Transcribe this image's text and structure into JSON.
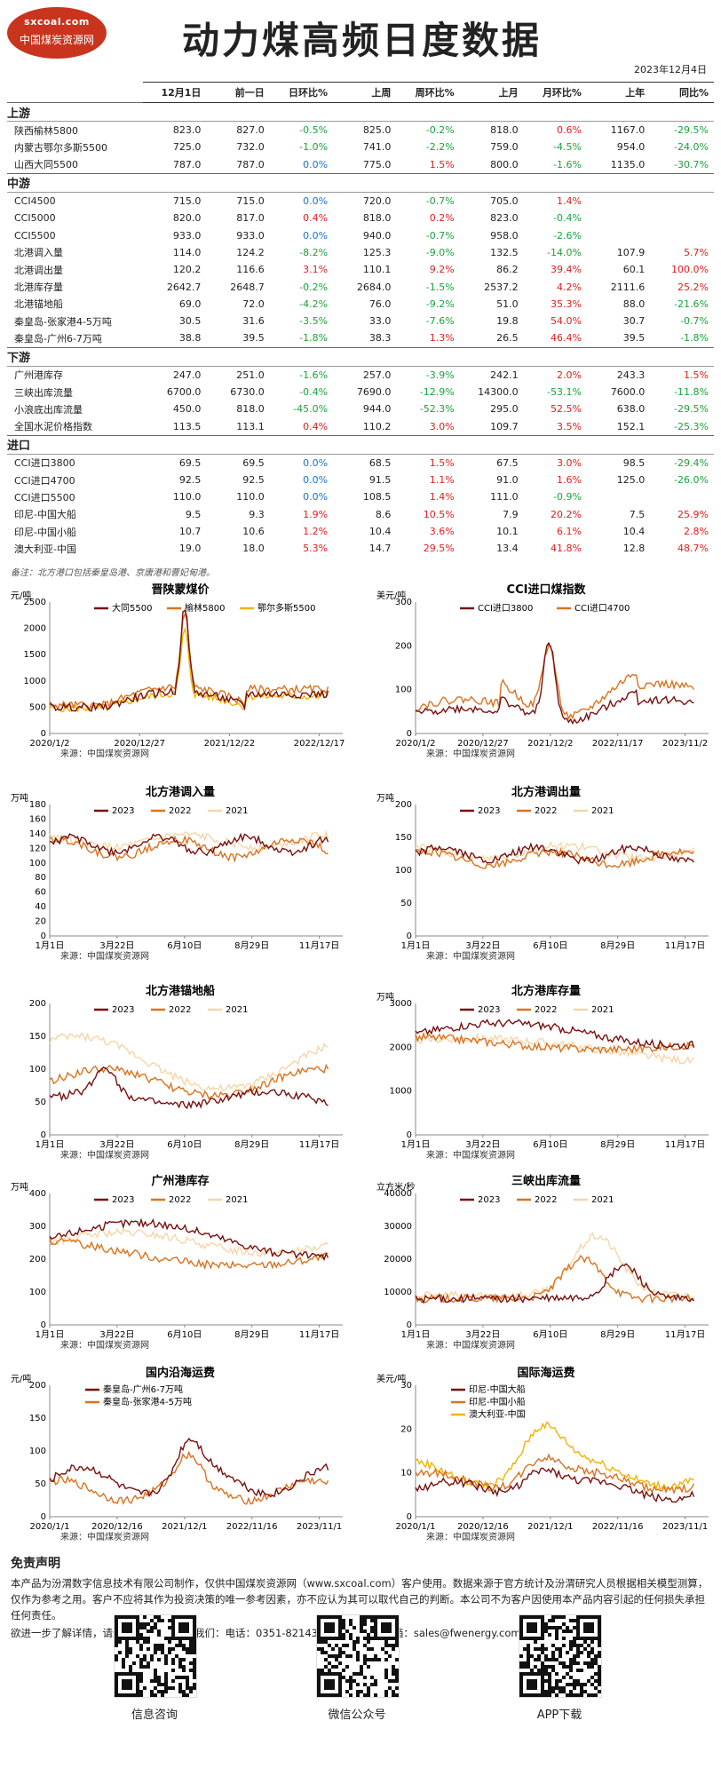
{
  "header": {
    "logo_site": "sxcoal.com",
    "logo_name": "中国煤炭资源网",
    "title": "动力煤高频日度数据",
    "date": "2023年12月4日"
  },
  "table": {
    "columns": [
      "",
      "12月1日",
      "前一日",
      "日环比%",
      "上周",
      "周环比%",
      "上月",
      "月环比%",
      "上年",
      "同比%"
    ],
    "sections": [
      {
        "name": "上游",
        "rows": [
          [
            "陕西榆林5800",
            "823.0",
            "827.0",
            "-0.5%",
            "825.0",
            "-0.2%",
            "818.0",
            "0.6%",
            "1167.0",
            "-29.5%"
          ],
          [
            "内蒙古鄂尔多斯5500",
            "725.0",
            "732.0",
            "-1.0%",
            "741.0",
            "-2.2%",
            "759.0",
            "-4.5%",
            "954.0",
            "-24.0%"
          ],
          [
            "山西大同5500",
            "787.0",
            "787.0",
            "0.0%",
            "775.0",
            "1.5%",
            "800.0",
            "-1.6%",
            "1135.0",
            "-30.7%"
          ]
        ]
      },
      {
        "name": "中游",
        "rows": [
          [
            "CCI4500",
            "715.0",
            "715.0",
            "0.0%",
            "720.0",
            "-0.7%",
            "705.0",
            "1.4%",
            "",
            ""
          ],
          [
            "CCI5000",
            "820.0",
            "817.0",
            "0.4%",
            "818.0",
            "0.2%",
            "823.0",
            "-0.4%",
            "",
            ""
          ],
          [
            "CCI5500",
            "933.0",
            "933.0",
            "0.0%",
            "940.0",
            "-0.7%",
            "958.0",
            "-2.6%",
            "",
            ""
          ],
          [
            "北港调入量",
            "114.0",
            "124.2",
            "-8.2%",
            "125.3",
            "-9.0%",
            "132.5",
            "-14.0%",
            "107.9",
            "5.7%"
          ],
          [
            "北港调出量",
            "120.2",
            "116.6",
            "3.1%",
            "110.1",
            "9.2%",
            "86.2",
            "39.4%",
            "60.1",
            "100.0%"
          ],
          [
            "北港库存量",
            "2642.7",
            "2648.7",
            "-0.2%",
            "2684.0",
            "-1.5%",
            "2537.2",
            "4.2%",
            "2111.6",
            "25.2%"
          ],
          [
            "北港锚地船",
            "69.0",
            "72.0",
            "-4.2%",
            "76.0",
            "-9.2%",
            "51.0",
            "35.3%",
            "88.0",
            "-21.6%"
          ],
          [
            "秦皇岛-张家港4-5万吨",
            "30.5",
            "31.6",
            "-3.5%",
            "33.0",
            "-7.6%",
            "19.8",
            "54.0%",
            "30.7",
            "-0.7%"
          ],
          [
            "秦皇岛-广州6-7万吨",
            "38.8",
            "39.5",
            "-1.8%",
            "38.3",
            "1.3%",
            "26.5",
            "46.4%",
            "39.5",
            "-1.8%"
          ]
        ]
      },
      {
        "name": "下游",
        "rows": [
          [
            "广州港库存",
            "247.0",
            "251.0",
            "-1.6%",
            "257.0",
            "-3.9%",
            "242.1",
            "2.0%",
            "243.3",
            "1.5%"
          ],
          [
            "三峡出库流量",
            "6700.0",
            "6730.0",
            "-0.4%",
            "7690.0",
            "-12.9%",
            "14300.0",
            "-53.1%",
            "7600.0",
            "-11.8%"
          ],
          [
            "小浪底出库流量",
            "450.0",
            "818.0",
            "-45.0%",
            "944.0",
            "-52.3%",
            "295.0",
            "52.5%",
            "638.0",
            "-29.5%"
          ],
          [
            "全国水泥价格指数",
            "113.5",
            "113.1",
            "0.4%",
            "110.2",
            "3.0%",
            "109.7",
            "3.5%",
            "152.1",
            "-25.3%"
          ]
        ]
      },
      {
        "name": "进口",
        "rows": [
          [
            "CCI进口3800",
            "69.5",
            "69.5",
            "0.0%",
            "68.5",
            "1.5%",
            "67.5",
            "3.0%",
            "98.5",
            "-29.4%"
          ],
          [
            "CCI进口4700",
            "92.5",
            "92.5",
            "0.0%",
            "91.5",
            "1.1%",
            "91.0",
            "1.6%",
            "125.0",
            "-26.0%"
          ],
          [
            "CCI进口5500",
            "110.0",
            "110.0",
            "0.0%",
            "108.5",
            "1.4%",
            "111.0",
            "-0.9%",
            "",
            ""
          ],
          [
            "印尼-中国大船",
            "9.5",
            "9.3",
            "1.9%",
            "8.6",
            "10.5%",
            "7.9",
            "20.2%",
            "7.5",
            "25.9%"
          ],
          [
            "印尼-中国小船",
            "10.7",
            "10.6",
            "1.2%",
            "10.4",
            "3.6%",
            "10.1",
            "6.1%",
            "10.4",
            "2.8%"
          ],
          [
            "澳大利亚-中国",
            "19.0",
            "18.0",
            "5.3%",
            "14.7",
            "29.5%",
            "13.4",
            "41.8%",
            "12.8",
            "48.7%"
          ]
        ]
      }
    ]
  },
  "note": "备注：北方港口包括秦皇岛港、京唐港和曹妃甸港。",
  "source_label": "来源：中国煤炭资源网",
  "chart_data": [
    {
      "id": "c1",
      "type": "line",
      "title": "晋陕蒙煤价",
      "unit": "元/吨",
      "ylim": [
        0,
        2500
      ],
      "yticks": [
        0,
        500,
        1000,
        1500,
        2000,
        2500
      ],
      "xticks": [
        "2020/1/2",
        "2020/12/27",
        "2021/12/22",
        "2022/12/17"
      ],
      "series": [
        {
          "name": "大同5500",
          "color": "#7a1010"
        },
        {
          "name": "榆林5800",
          "color": "#d9731f"
        },
        {
          "name": "鄂尔多斯5500",
          "color": "#f0b400"
        }
      ]
    },
    {
      "id": "c2",
      "type": "line",
      "title": "CCI进口煤指数",
      "unit": "美元/吨",
      "ylim": [
        0,
        300
      ],
      "yticks": [
        0,
        100,
        200,
        300
      ],
      "xticks": [
        "2020/1/2",
        "2020/12/27",
        "2021/12/2",
        "2022/11/17",
        "2023/11/2"
      ],
      "series": [
        {
          "name": "CCI进口3800",
          "color": "#7a1010"
        },
        {
          "name": "CCI进口4700",
          "color": "#d9731f"
        }
      ]
    },
    {
      "id": "c3",
      "type": "line",
      "title": "北方港调入量",
      "unit": "万吨",
      "ylim": [
        0,
        180
      ],
      "yticks": [
        0,
        20,
        40,
        60,
        80,
        100,
        120,
        140,
        160,
        180
      ],
      "xticks": [
        "1月1日",
        "3月22日",
        "6月10日",
        "8月29日",
        "11月17日"
      ],
      "series": [
        {
          "name": "2023",
          "color": "#7a1010"
        },
        {
          "name": "2022",
          "color": "#d9731f"
        },
        {
          "name": "2021",
          "color": "#f5d6a8"
        }
      ]
    },
    {
      "id": "c4",
      "type": "line",
      "title": "北方港调出量",
      "unit": "万吨",
      "ylim": [
        0,
        200
      ],
      "yticks": [
        0,
        50,
        100,
        150,
        200
      ],
      "xticks": [
        "1月1日",
        "3月22日",
        "6月10日",
        "8月29日",
        "11月17日"
      ],
      "series": [
        {
          "name": "2023",
          "color": "#7a1010"
        },
        {
          "name": "2022",
          "color": "#d9731f"
        },
        {
          "name": "2021",
          "color": "#f5d6a8"
        }
      ]
    },
    {
      "id": "c5",
      "type": "line",
      "title": "北方港锚地船",
      "unit": "",
      "ylim": [
        0,
        200
      ],
      "yticks": [
        0,
        50,
        100,
        150,
        200
      ],
      "xticks": [
        "1月1日",
        "3月22日",
        "6月10日",
        "8月29日",
        "11月17日"
      ],
      "series": [
        {
          "name": "2023",
          "color": "#7a1010"
        },
        {
          "name": "2022",
          "color": "#d9731f"
        },
        {
          "name": "2021",
          "color": "#f5d6a8"
        }
      ]
    },
    {
      "id": "c6",
      "type": "line",
      "title": "北方港库存量",
      "unit": "万吨",
      "ylim": [
        0,
        3000
      ],
      "yticks": [
        0,
        1000,
        2000,
        3000
      ],
      "xticks": [
        "1月1日",
        "3月22日",
        "6月10日",
        "8月29日",
        "11月17日"
      ],
      "series": [
        {
          "name": "2023",
          "color": "#7a1010"
        },
        {
          "name": "2022",
          "color": "#d9731f"
        },
        {
          "name": "2021",
          "color": "#f5d6a8"
        }
      ]
    },
    {
      "id": "c7",
      "type": "line",
      "title": "广州港库存",
      "unit": "万吨",
      "ylim": [
        0,
        400
      ],
      "yticks": [
        0,
        100,
        200,
        300,
        400
      ],
      "xticks": [
        "1月1日",
        "3月22日",
        "6月10日",
        "8月29日",
        "11月17日"
      ],
      "series": [
        {
          "name": "2023",
          "color": "#7a1010"
        },
        {
          "name": "2022",
          "color": "#d9731f"
        },
        {
          "name": "2021",
          "color": "#f5d6a8"
        }
      ]
    },
    {
      "id": "c8",
      "type": "line",
      "title": "三峡出库流量",
      "unit": "立方米/秒",
      "ylim": [
        0,
        40000
      ],
      "yticks": [
        0,
        10000,
        20000,
        30000,
        40000
      ],
      "xticks": [
        "1月1日",
        "3月22日",
        "6月10日",
        "8月29日",
        "11月17日"
      ],
      "series": [
        {
          "name": "2023",
          "color": "#7a1010"
        },
        {
          "name": "2022",
          "color": "#d9731f"
        },
        {
          "name": "2021",
          "color": "#f5d6a8"
        }
      ]
    },
    {
      "id": "c9",
      "type": "line",
      "title": "国内沿海运费",
      "unit": "元/吨",
      "ylim": [
        0,
        200
      ],
      "yticks": [
        0,
        50,
        100,
        150,
        200
      ],
      "xticks": [
        "2020/1/1",
        "2020/12/16",
        "2021/12/1",
        "2022/11/16",
        "2023/11/1"
      ],
      "series": [
        {
          "name": "秦皇岛-广州6-7万吨",
          "color": "#7a1010"
        },
        {
          "name": "秦皇岛-张家港4-5万吨",
          "color": "#d9731f"
        }
      ]
    },
    {
      "id": "c10",
      "type": "line",
      "title": "国际海运费",
      "unit": "美元/吨",
      "ylim": [
        0,
        30
      ],
      "yticks": [
        0,
        10,
        20,
        30
      ],
      "xticks": [
        "2020/1/1",
        "2020/12/16",
        "2021/12/1",
        "2022/11/16",
        "2023/11/1"
      ],
      "series": [
        {
          "name": "印尼-中国大船",
          "color": "#7a1010"
        },
        {
          "name": "印尼-中国小船",
          "color": "#d9731f"
        },
        {
          "name": "澳大利亚-中国",
          "color": "#f0b400"
        }
      ]
    }
  ],
  "disclaimer": {
    "title": "免责声明",
    "body": "本产品为汾渭数字信息技术有限公司制作，仅供中国煤炭资源网（www.sxcoal.com）客户使用。数据来源于官方统计及汾渭研究人员根据相关模型测算，仅作为参考之用。客户不应将其作为投资决策的唯一参考因素，亦不应认为其可以取代自己的判断。本公司不为客户因使用本产品内容引起的任何损失承担任何责任。",
    "contact": "欲进一步了解详情，请通过以下方式联系我们：电话：0351-8214333/4728660 邮箱：sales@fwenergy.com"
  },
  "qr_captions": [
    "信息咨询",
    "微信公众号",
    "APP下载"
  ]
}
